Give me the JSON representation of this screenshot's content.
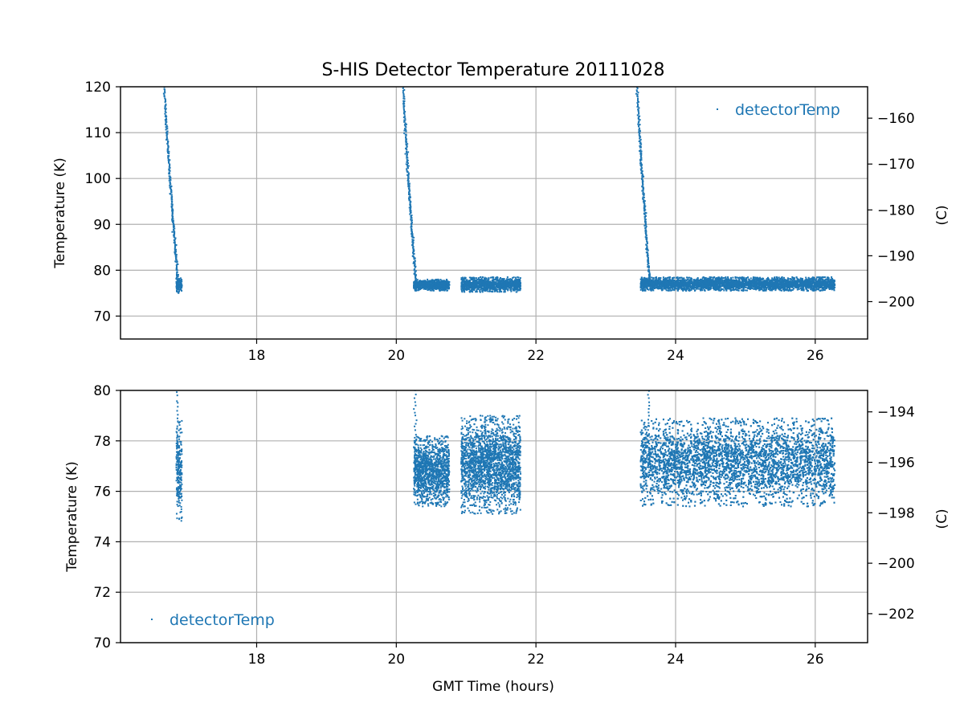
{
  "figure": {
    "title": "S-HIS Detector Temperature 20111028",
    "colors": {
      "series": "#1f77b4",
      "grid": "#b0b0b0",
      "axis": "#000000"
    }
  },
  "chart_data": [
    {
      "type": "scatter",
      "panel": "top",
      "title": "S-HIS Detector Temperature 20111028",
      "xlabel": "",
      "ylabel": "Temperature (K)",
      "ylabel_right": "(C)",
      "xlim": [
        16.05,
        26.75
      ],
      "ylim": [
        65,
        120
      ],
      "ylim_right": [
        -208.15,
        -153.15
      ],
      "xticks": [
        18,
        20,
        22,
        24,
        26
      ],
      "yticks": [
        70,
        80,
        90,
        100,
        110,
        120
      ],
      "yticks_right": [
        -200,
        -190,
        -180,
        -170,
        -160
      ],
      "grid": true,
      "legend": {
        "entries": [
          "detectorTemp"
        ],
        "placement": "top-right"
      },
      "series": [
        {
          "name": "detectorTemp",
          "color": "#1f77b4",
          "marker": "point",
          "segments": [
            {
              "kind": "cooldown",
              "x": [
                16.68,
                16.88
              ],
              "y": [
                120,
                76.0
              ]
            },
            {
              "kind": "steady",
              "x": [
                16.85,
                16.93
              ],
              "y_range": [
                75.0,
                78.5
              ]
            },
            {
              "kind": "cooldown",
              "x": [
                20.1,
                20.28
              ],
              "y": [
                120,
                77.0
              ]
            },
            {
              "kind": "steady",
              "x": [
                20.25,
                20.76
              ],
              "y_range": [
                75.5,
                78.0
              ]
            },
            {
              "kind": "steady",
              "x": [
                20.93,
                21.78
              ],
              "y_range": [
                75.2,
                78.5
              ]
            },
            {
              "kind": "cooldown",
              "x": [
                23.45,
                23.63
              ],
              "y": [
                120,
                77.0
              ]
            },
            {
              "kind": "steady",
              "x": [
                23.5,
                26.28
              ],
              "y_range": [
                75.5,
                78.5
              ]
            }
          ]
        }
      ]
    },
    {
      "type": "scatter",
      "panel": "bottom",
      "title": "",
      "xlabel": "GMT Time (hours)",
      "ylabel": "Temperature (K)",
      "ylabel_right": "(C)",
      "xlim": [
        16.05,
        26.75
      ],
      "ylim": [
        70,
        80
      ],
      "ylim_right": [
        -203.15,
        -193.15
      ],
      "xticks": [
        18,
        20,
        22,
        24,
        26
      ],
      "yticks": [
        70,
        72,
        74,
        76,
        78,
        80
      ],
      "yticks_right": [
        -202,
        -200,
        -198,
        -196,
        -194
      ],
      "grid": true,
      "legend": {
        "entries": [
          "detectorTemp"
        ],
        "placement": "bottom-left"
      },
      "series": [
        {
          "name": "detectorTemp",
          "color": "#1f77b4",
          "marker": "point",
          "segments": [
            {
              "kind": "cooldown",
              "x": [
                16.68,
                16.88
              ],
              "y": [
                120,
                76.0
              ]
            },
            {
              "kind": "steady",
              "x": [
                16.85,
                16.93
              ],
              "y_range": [
                74.8,
                78.8
              ]
            },
            {
              "kind": "cooldown",
              "x": [
                20.1,
                20.28
              ],
              "y": [
                120,
                77.0
              ]
            },
            {
              "kind": "steady",
              "x": [
                20.25,
                20.76
              ],
              "y_range": [
                75.4,
                78.2
              ]
            },
            {
              "kind": "steady",
              "x": [
                20.93,
                21.78
              ],
              "y_range": [
                75.1,
                79.0
              ]
            },
            {
              "kind": "cooldown",
              "x": [
                23.45,
                23.63
              ],
              "y": [
                120,
                77.0
              ]
            },
            {
              "kind": "steady",
              "x": [
                23.5,
                26.28
              ],
              "y_range": [
                75.4,
                78.9
              ]
            }
          ]
        }
      ]
    }
  ]
}
